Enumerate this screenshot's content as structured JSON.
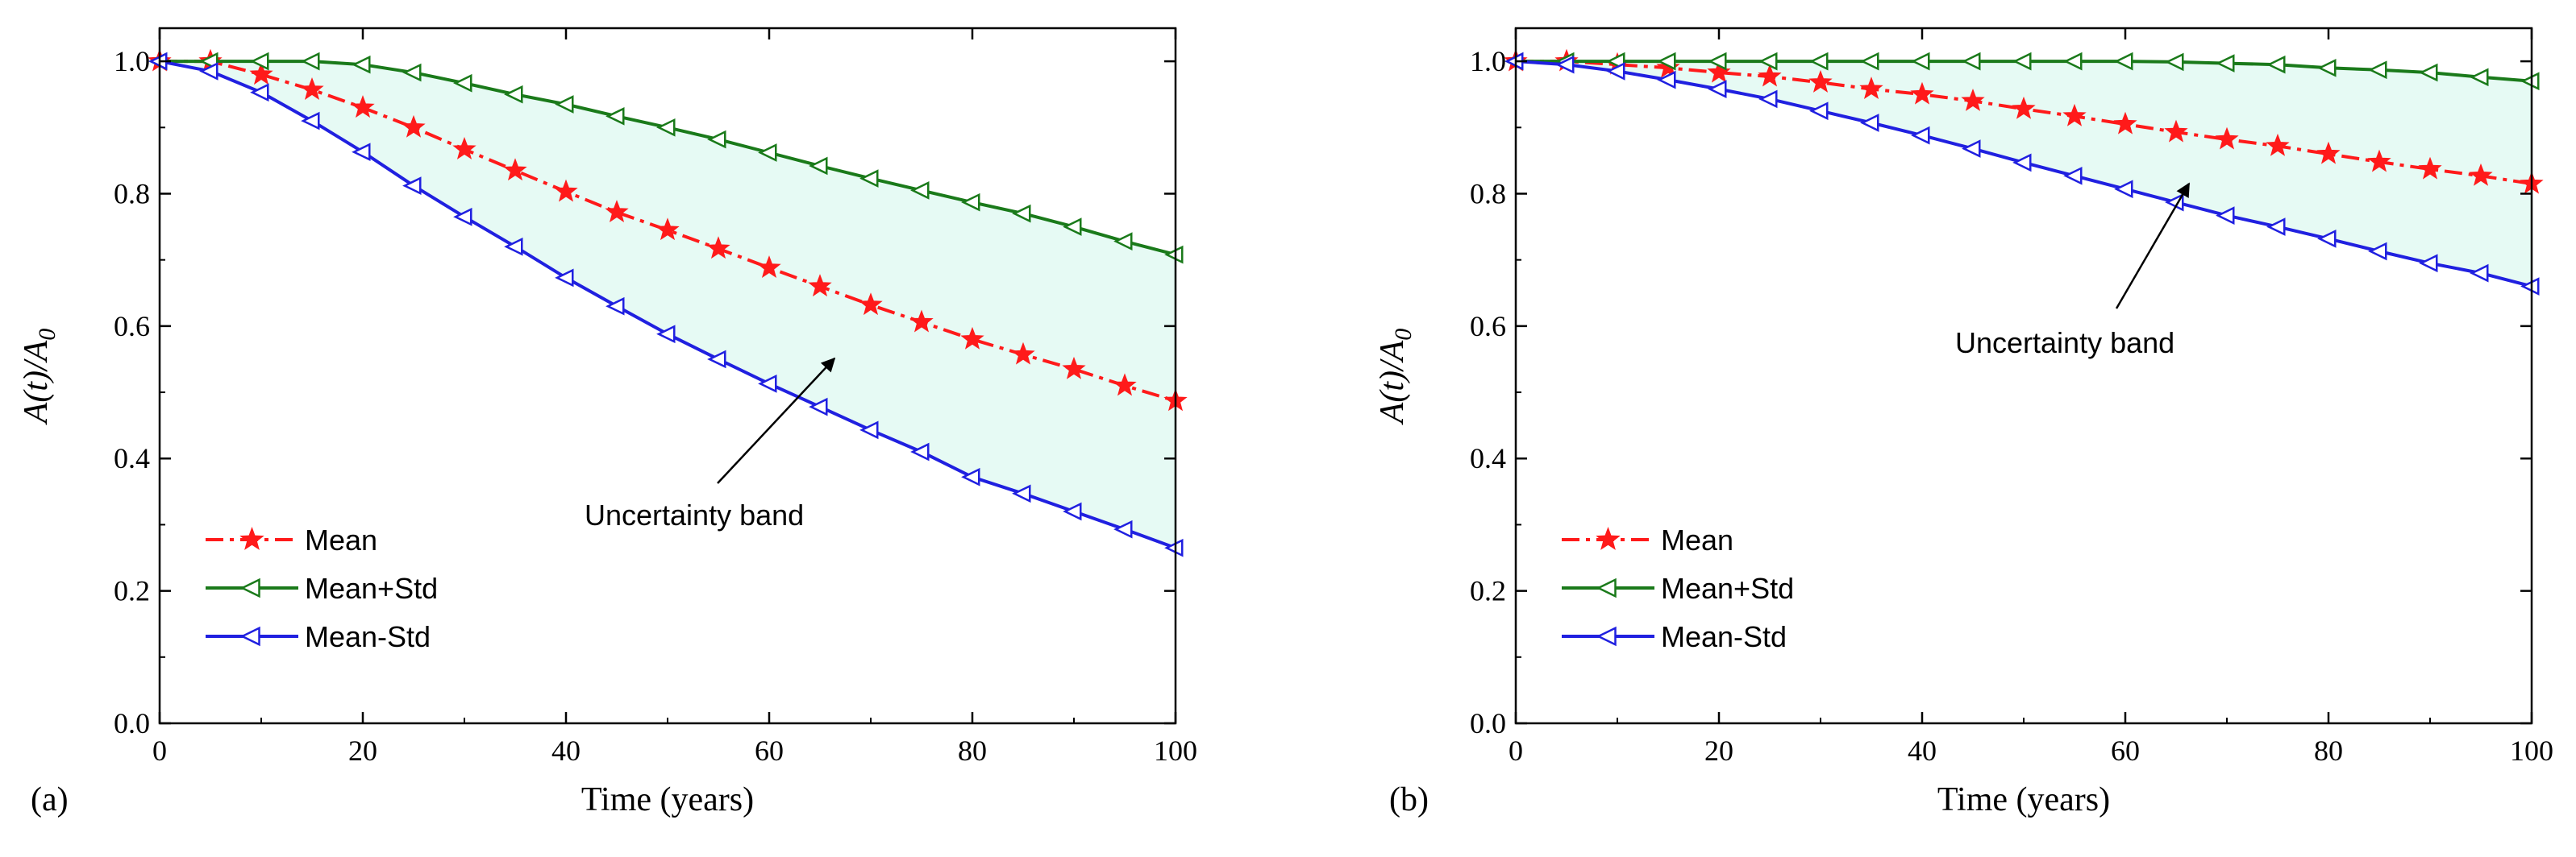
{
  "chart_data": [
    {
      "type": "line",
      "panel_label": "(a)",
      "xlabel": "Time (years)",
      "ylabel": "A(t)/A0",
      "ylabel_parts": [
        "A(",
        "t",
        ")/",
        "A",
        "0"
      ],
      "xlim": [
        0,
        100
      ],
      "ylim": [
        0.0,
        1.05
      ],
      "xticks": [
        0,
        20,
        40,
        60,
        80,
        100
      ],
      "yticks": [
        0.0,
        0.2,
        0.4,
        0.6,
        0.8,
        1.0
      ],
      "band_color": "#e6faf4",
      "annotation": "Uncertainty band",
      "x": [
        0,
        5,
        10,
        15,
        20,
        25,
        30,
        35,
        40,
        45,
        50,
        55,
        60,
        65,
        70,
        75,
        80,
        85,
        90,
        95,
        100
      ],
      "series": [
        {
          "name": "Mean",
          "color": "#ff1a1a",
          "marker": "star",
          "dash": "dashdot",
          "values": [
            1.0,
            1.0,
            0.98,
            0.957,
            0.93,
            0.9,
            0.867,
            0.835,
            0.803,
            0.772,
            0.745,
            0.717,
            0.688,
            0.66,
            0.632,
            0.606,
            0.58,
            0.557,
            0.535,
            0.51,
            0.487
          ]
        },
        {
          "name": "Mean+Std",
          "color": "#1a7a1a",
          "marker": "triangle-left",
          "dash": "solid",
          "values": [
            1.0,
            1.0,
            1.0,
            1.0,
            0.995,
            0.983,
            0.967,
            0.95,
            0.935,
            0.917,
            0.9,
            0.882,
            0.862,
            0.842,
            0.823,
            0.805,
            0.787,
            0.77,
            0.75,
            0.728,
            0.708
          ]
        },
        {
          "name": "Mean-Std",
          "color": "#2020e0",
          "marker": "triangle-left",
          "dash": "solid",
          "values": [
            1.0,
            0.985,
            0.953,
            0.91,
            0.863,
            0.812,
            0.765,
            0.72,
            0.673,
            0.63,
            0.588,
            0.55,
            0.513,
            0.478,
            0.443,
            0.41,
            0.372,
            0.347,
            0.32,
            0.293,
            0.265
          ]
        }
      ]
    },
    {
      "type": "line",
      "panel_label": "(b)",
      "xlabel": "Time (years)",
      "ylabel": "A(t)/A0",
      "ylabel_parts": [
        "A(",
        "t",
        ")/",
        "A",
        "0"
      ],
      "xlim": [
        0,
        100
      ],
      "ylim": [
        0.0,
        1.05
      ],
      "xticks": [
        0,
        20,
        40,
        60,
        80,
        100
      ],
      "yticks": [
        0.0,
        0.2,
        0.4,
        0.6,
        0.8,
        1.0
      ],
      "band_color": "#e6faf4",
      "annotation": "Uncertainty band",
      "x": [
        0,
        5,
        10,
        15,
        20,
        25,
        30,
        35,
        40,
        45,
        50,
        55,
        60,
        65,
        70,
        75,
        80,
        85,
        90,
        95,
        100
      ],
      "series": [
        {
          "name": "Mean",
          "color": "#ff1a1a",
          "marker": "star",
          "dash": "dashdot",
          "values": [
            1.0,
            1.0,
            0.995,
            0.99,
            0.983,
            0.977,
            0.968,
            0.958,
            0.95,
            0.94,
            0.928,
            0.917,
            0.905,
            0.893,
            0.882,
            0.872,
            0.86,
            0.848,
            0.837,
            0.827,
            0.815
          ]
        },
        {
          "name": "Mean+Std",
          "color": "#1a7a1a",
          "marker": "triangle-left",
          "dash": "solid",
          "values": [
            1.0,
            1.0,
            1.0,
            1.0,
            1.0,
            1.0,
            1.0,
            1.0,
            1.0,
            1.0,
            1.0,
            1.0,
            1.0,
            0.999,
            0.997,
            0.995,
            0.99,
            0.987,
            0.983,
            0.976,
            0.97
          ]
        },
        {
          "name": "Mean-Std",
          "color": "#2020e0",
          "marker": "triangle-left",
          "dash": "solid",
          "values": [
            1.0,
            0.995,
            0.985,
            0.972,
            0.958,
            0.943,
            0.925,
            0.907,
            0.888,
            0.868,
            0.847,
            0.827,
            0.807,
            0.787,
            0.767,
            0.75,
            0.732,
            0.713,
            0.695,
            0.68,
            0.66
          ]
        }
      ]
    }
  ]
}
